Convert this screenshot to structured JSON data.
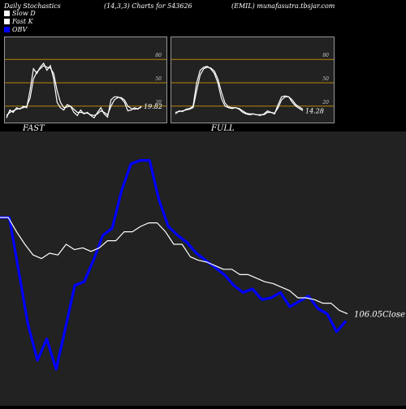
{
  "header": {
    "title": "Daily Stochastics",
    "params": "(14,3,3) Charts for 543626",
    "site": "(EMIL) munafasutra.tbsjar.com"
  },
  "legend": [
    {
      "label": "Slow D",
      "color": "#ffffff"
    },
    {
      "label": "Fast K",
      "color": "#ffffff"
    },
    {
      "label": "OBV",
      "color": "#0000ff"
    }
  ],
  "chart_data": [
    {
      "type": "line",
      "title": "FAST",
      "ylim": [
        0,
        100
      ],
      "levels": [
        20,
        50,
        80
      ],
      "level_color": "#b8860b",
      "last_value_label": "19.82",
      "series": [
        {
          "values": [
            5,
            15,
            12,
            18,
            16,
            20,
            18,
            40,
            68,
            62,
            70,
            75,
            66,
            72,
            55,
            25,
            18,
            15,
            22,
            20,
            12,
            8,
            15,
            10,
            12,
            8,
            5,
            12,
            18,
            10,
            6,
            28,
            32,
            32,
            30,
            25,
            14,
            15,
            18,
            16,
            19.82
          ]
        },
        {
          "values": [
            8,
            12,
            14,
            16,
            17,
            18,
            20,
            30,
            55,
            64,
            68,
            72,
            70,
            69,
            62,
            40,
            25,
            18,
            19,
            20,
            16,
            12,
            12,
            11,
            11,
            9,
            8,
            10,
            14,
            12,
            9,
            20,
            28,
            31,
            31,
            28,
            20,
            17,
            16,
            17,
            18.5
          ]
        }
      ]
    },
    {
      "type": "line",
      "title": "FULL",
      "ylim": [
        0,
        100
      ],
      "levels": [
        20,
        50,
        80
      ],
      "level_color": "#b8860b",
      "last_value_label": "14.28",
      "series": [
        {
          "values": [
            10,
            14,
            13,
            16,
            17,
            20,
            50,
            66,
            70,
            71,
            68,
            62,
            50,
            30,
            20,
            18,
            17,
            18,
            16,
            12,
            10,
            9,
            10,
            9,
            8,
            10,
            14,
            12,
            10,
            22,
            32,
            33,
            32,
            25,
            20,
            17,
            14.28
          ]
        },
        {
          "values": [
            12,
            13,
            14,
            15,
            16,
            18,
            40,
            60,
            68,
            70,
            69,
            65,
            55,
            38,
            24,
            19,
            18,
            18,
            17,
            14,
            11,
            10,
            10,
            9,
            9,
            9,
            12,
            12,
            11,
            18,
            28,
            32,
            32,
            28,
            22,
            19,
            16
          ]
        }
      ]
    },
    {
      "type": "line",
      "ylim": [
        90,
        200
      ],
      "last_value_label": "106.05",
      "close_label": "Close",
      "series": [
        {
          "values": [
            160,
            160,
            152,
            145,
            139,
            137,
            140,
            139,
            145,
            142,
            143,
            141,
            143,
            147,
            147,
            152,
            152,
            155,
            157,
            157,
            152,
            145,
            145,
            138,
            136,
            135,
            133,
            131,
            131,
            128,
            128,
            126,
            124,
            123,
            121,
            119,
            115,
            115,
            114,
            112,
            112,
            108,
            106.05
          ]
        },
        {
          "color": "#0000ff",
          "values": [
            160,
            160,
            130,
            100,
            80,
            92,
            75,
            98,
            122,
            124,
            136,
            150,
            154,
            175,
            190,
            192,
            192,
            170,
            155,
            150,
            146,
            140,
            136,
            132,
            128,
            122,
            118,
            120,
            114,
            115,
            118,
            110,
            113,
            116,
            109,
            106,
            96,
            102
          ]
        }
      ]
    }
  ]
}
